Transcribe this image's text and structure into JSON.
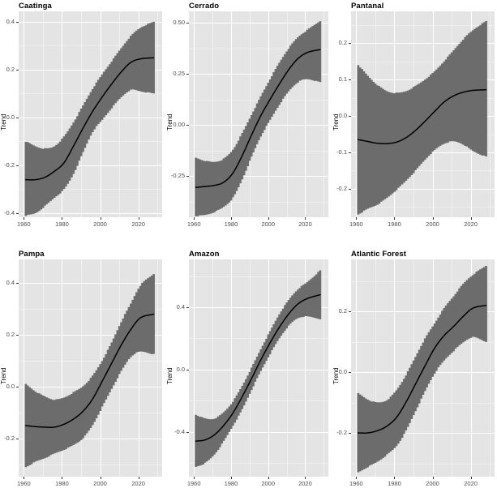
{
  "style": {
    "page_bg": "#ffffff",
    "panel_bg": "#e4e4e4",
    "grid_major": "#ffffff",
    "grid_minor": "rgba(255,255,255,0.55)",
    "ribbon": "#6c6c6c",
    "trend_line": "#000000",
    "tick_text": "#4d4d4d",
    "tick_mark": "#333333",
    "title_text": "#000000"
  },
  "chart_data": [
    {
      "type": "area",
      "title": "Caatinga",
      "ylabel": "Trend",
      "xlim": [
        1957.3,
        2032.5
      ],
      "ylim": [
        -0.417,
        0.444
      ],
      "x_ticks": [
        1960,
        1980,
        2000,
        2020
      ],
      "x_tick_labels": [
        "1960",
        "1980",
        "2000",
        "2020"
      ],
      "x_minor": [
        1970,
        1990,
        2010,
        2030
      ],
      "y_ticks": [
        0.4,
        0.2,
        0.0,
        -0.2,
        -0.4
      ],
      "y_tick_labels": [
        "0.4",
        "0.2",
        "0.0",
        "-0.2",
        "-0.4"
      ],
      "y_minor": [
        0.3,
        0.1,
        -0.1,
        -0.3
      ],
      "years": [
        1961,
        1966,
        1971,
        1976,
        1981,
        1986,
        1991,
        1996,
        2001,
        2006,
        2011,
        2016,
        2021,
        2028
      ],
      "mean": [
        -0.26,
        -0.26,
        -0.25,
        -0.225,
        -0.19,
        -0.12,
        -0.045,
        0.025,
        0.085,
        0.14,
        0.19,
        0.23,
        0.245,
        0.25
      ],
      "upper": [
        -0.1,
        -0.12,
        -0.13,
        -0.12,
        -0.08,
        -0.02,
        0.05,
        0.12,
        0.18,
        0.235,
        0.29,
        0.34,
        0.375,
        0.4
      ],
      "lower": [
        -0.41,
        -0.4,
        -0.37,
        -0.335,
        -0.3,
        -0.235,
        -0.145,
        -0.06,
        -0.01,
        0.04,
        0.085,
        0.115,
        0.11,
        0.1
      ]
    },
    {
      "type": "area",
      "title": "Cerrado",
      "ylabel": "Trend",
      "xlim": [
        1957.3,
        2032.5
      ],
      "ylim": [
        -0.451,
        0.557
      ],
      "x_ticks": [
        1960,
        1980,
        2000,
        2020
      ],
      "x_tick_labels": [
        "1960",
        "1980",
        "2000",
        "2020"
      ],
      "x_minor": [
        1970,
        1990,
        2010,
        2030
      ],
      "y_ticks": [
        0.5,
        0.25,
        0.0,
        -0.25
      ],
      "y_tick_labels": [
        "0.50",
        "0.25",
        "0.00",
        "-0.25"
      ],
      "y_minor": [
        0.375,
        0.125,
        -0.125,
        -0.375
      ],
      "years": [
        1961,
        1966,
        1971,
        1976,
        1981,
        1986,
        1991,
        1996,
        2001,
        2006,
        2011,
        2016,
        2021,
        2028
      ],
      "mean": [
        -0.305,
        -0.3,
        -0.295,
        -0.28,
        -0.235,
        -0.15,
        -0.05,
        0.045,
        0.125,
        0.2,
        0.27,
        0.325,
        0.355,
        0.37
      ],
      "upper": [
        -0.16,
        -0.175,
        -0.18,
        -0.165,
        -0.12,
        -0.04,
        0.05,
        0.14,
        0.225,
        0.305,
        0.375,
        0.43,
        0.465,
        0.51
      ],
      "lower": [
        -0.445,
        -0.44,
        -0.425,
        -0.4,
        -0.355,
        -0.265,
        -0.155,
        -0.055,
        0.025,
        0.1,
        0.165,
        0.21,
        0.225,
        0.21
      ]
    },
    {
      "type": "area",
      "title": "Pantanal",
      "ylabel": "Trend",
      "xlim": [
        1957.3,
        2032.5
      ],
      "ylim": [
        -0.278,
        0.287
      ],
      "x_ticks": [
        1960,
        1980,
        2000,
        2020
      ],
      "x_tick_labels": [
        "1960",
        "1980",
        "2000",
        "2020"
      ],
      "x_minor": [
        1970,
        1990,
        2010,
        2030
      ],
      "y_ticks": [
        0.2,
        0.1,
        0.0,
        -0.1,
        -0.2
      ],
      "y_tick_labels": [
        "0.2",
        "0.1",
        "0.0",
        "-0.1",
        "-0.2"
      ],
      "y_minor": [
        0.25,
        0.15,
        0.05,
        -0.05,
        -0.15,
        -0.25
      ],
      "years": [
        1961,
        1966,
        1971,
        1976,
        1981,
        1986,
        1991,
        1996,
        2001,
        2006,
        2011,
        2016,
        2021,
        2028
      ],
      "mean": [
        -0.065,
        -0.07,
        -0.075,
        -0.076,
        -0.072,
        -0.06,
        -0.04,
        -0.015,
        0.012,
        0.038,
        0.055,
        0.065,
        0.07,
        0.072
      ],
      "upper": [
        0.14,
        0.11,
        0.085,
        0.068,
        0.063,
        0.068,
        0.082,
        0.1,
        0.122,
        0.15,
        0.18,
        0.21,
        0.235,
        0.26
      ],
      "lower": [
        -0.27,
        -0.255,
        -0.243,
        -0.225,
        -0.203,
        -0.178,
        -0.15,
        -0.12,
        -0.094,
        -0.076,
        -0.07,
        -0.078,
        -0.096,
        -0.112
      ]
    },
    {
      "type": "area",
      "title": "Pampa",
      "ylabel": "Trend",
      "xlim": [
        1957.3,
        2032.5
      ],
      "ylim": [
        -0.347,
        0.491
      ],
      "x_ticks": [
        1960,
        1980,
        2000,
        2020
      ],
      "x_tick_labels": [
        "1960",
        "1980",
        "2000",
        "2020"
      ],
      "x_minor": [
        1970,
        1990,
        2010,
        2030
      ],
      "y_ticks": [
        0.4,
        0.2,
        0.0,
        -0.2
      ],
      "y_tick_labels": [
        "0.4",
        "0.2",
        "0.0",
        "-0.2"
      ],
      "y_minor": [
        0.3,
        0.1,
        -0.1,
        -0.3
      ],
      "years": [
        1961,
        1966,
        1971,
        1976,
        1981,
        1986,
        1991,
        1996,
        2001,
        2006,
        2011,
        2016,
        2021,
        2028
      ],
      "mean": [
        -0.15,
        -0.154,
        -0.156,
        -0.156,
        -0.145,
        -0.125,
        -0.095,
        -0.048,
        0.02,
        0.09,
        0.16,
        0.22,
        0.265,
        0.28
      ],
      "upper": [
        0.01,
        -0.018,
        -0.038,
        -0.05,
        -0.042,
        -0.022,
        0.002,
        0.042,
        0.1,
        0.17,
        0.25,
        0.32,
        0.39,
        0.435
      ],
      "lower": [
        -0.31,
        -0.29,
        -0.275,
        -0.258,
        -0.243,
        -0.225,
        -0.198,
        -0.148,
        -0.078,
        -0.008,
        0.06,
        0.115,
        0.135,
        0.125
      ]
    },
    {
      "type": "area",
      "title": "Amazon",
      "ylabel": "Trend",
      "xlim": [
        1957.3,
        2032.5
      ],
      "ylim": [
        -0.688,
        0.707
      ],
      "x_ticks": [
        1960,
        1980,
        2000,
        2020
      ],
      "x_tick_labels": [
        "1960",
        "1980",
        "2000",
        "2020"
      ],
      "x_minor": [
        1970,
        1990,
        2010,
        2030
      ],
      "y_ticks": [
        0.4,
        0.0,
        -0.4
      ],
      "y_tick_labels": [
        "0.4",
        "0.0",
        "-0.4"
      ],
      "y_minor": [
        0.6,
        0.2,
        -0.2,
        -0.6
      ],
      "years": [
        1961,
        1966,
        1971,
        1976,
        1981,
        1986,
        1991,
        1996,
        2001,
        2006,
        2011,
        2016,
        2021,
        2028
      ],
      "mean": [
        -0.46,
        -0.452,
        -0.42,
        -0.36,
        -0.28,
        -0.175,
        -0.06,
        0.06,
        0.17,
        0.27,
        0.355,
        0.42,
        0.455,
        0.48
      ],
      "upper": [
        -0.29,
        -0.315,
        -0.315,
        -0.275,
        -0.205,
        -0.105,
        0.01,
        0.13,
        0.245,
        0.355,
        0.445,
        0.515,
        0.56,
        0.635
      ],
      "lower": [
        -0.625,
        -0.6,
        -0.545,
        -0.46,
        -0.36,
        -0.255,
        -0.13,
        -0.01,
        0.1,
        0.2,
        0.28,
        0.33,
        0.34,
        0.325
      ]
    },
    {
      "type": "area",
      "title": "Atlantic Forest",
      "ylabel": "Trend",
      "xlim": [
        1957.3,
        2032.5
      ],
      "ylim": [
        -0.344,
        0.371
      ],
      "x_ticks": [
        1960,
        1980,
        2000,
        2020
      ],
      "x_tick_labels": [
        "1960",
        "1980",
        "2000",
        "2020"
      ],
      "x_minor": [
        1970,
        1990,
        2010,
        2030
      ],
      "y_ticks": [
        0.2,
        0.0,
        -0.2
      ],
      "y_tick_labels": [
        "0.2",
        "0.0",
        "-0.2"
      ],
      "y_minor": [
        0.3,
        0.1,
        -0.1,
        -0.3
      ],
      "years": [
        1961,
        1966,
        1971,
        1976,
        1981,
        1986,
        1991,
        1996,
        2001,
        2006,
        2011,
        2016,
        2021,
        2028
      ],
      "mean": [
        -0.2,
        -0.2,
        -0.193,
        -0.178,
        -0.15,
        -0.1,
        -0.04,
        0.02,
        0.078,
        0.12,
        0.15,
        0.183,
        0.21,
        0.22
      ],
      "upper": [
        -0.07,
        -0.09,
        -0.1,
        -0.092,
        -0.06,
        -0.01,
        0.05,
        0.11,
        0.16,
        0.21,
        0.25,
        0.29,
        0.32,
        0.35
      ],
      "lower": [
        -0.33,
        -0.312,
        -0.295,
        -0.272,
        -0.243,
        -0.193,
        -0.128,
        -0.063,
        -0.004,
        0.038,
        0.07,
        0.098,
        0.115,
        0.1
      ]
    }
  ]
}
